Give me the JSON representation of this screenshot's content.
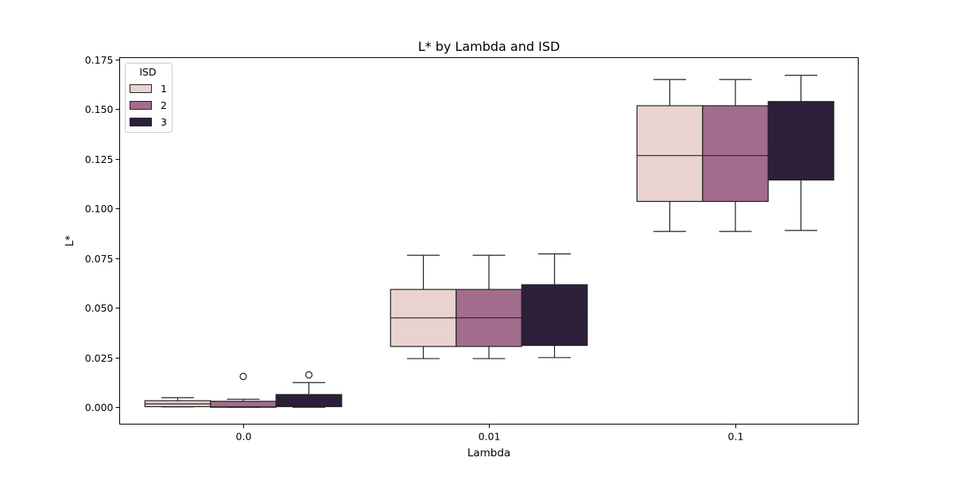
{
  "chart_data": {
    "type": "boxplot",
    "title": "L* by Lambda and ISD",
    "xlabel": "Lambda",
    "ylabel": "L*",
    "ylim": [
      -0.0085,
      0.176
    ],
    "yticks": [
      "0.000",
      "0.025",
      "0.050",
      "0.075",
      "0.100",
      "0.125",
      "0.150",
      "0.175"
    ],
    "ytick_values": [
      0.0,
      0.025,
      0.05,
      0.075,
      0.1,
      0.125,
      0.15,
      0.175
    ],
    "categories": [
      "0.0",
      "0.01",
      "0.1"
    ],
    "legend": {
      "title": "ISD",
      "position": "top-left"
    },
    "grid": false,
    "series": [
      {
        "name": "1",
        "color": "#e8d3d0",
        "boxes": [
          {
            "whisker_low": 0.0002,
            "q1": 0.0003,
            "median": 0.0017,
            "q3": 0.0033,
            "whisker_high": 0.0048,
            "outliers": []
          },
          {
            "whisker_low": 0.0245,
            "q1": 0.0306,
            "median": 0.045,
            "q3": 0.0593,
            "whisker_high": 0.0765,
            "outliers": []
          },
          {
            "whisker_low": 0.0885,
            "q1": 0.1036,
            "median": 0.1267,
            "q3": 0.1518,
            "whisker_high": 0.165,
            "outliers": []
          }
        ]
      },
      {
        "name": "2",
        "color": "#a26d8c",
        "boxes": [
          {
            "whisker_low": 0.0,
            "q1": 0.0,
            "median": 0.0002,
            "q3": 0.003,
            "whisker_high": 0.004,
            "outliers": [
              0.0155
            ]
          },
          {
            "whisker_low": 0.0245,
            "q1": 0.0306,
            "median": 0.045,
            "q3": 0.0593,
            "whisker_high": 0.0765,
            "outliers": []
          },
          {
            "whisker_low": 0.0885,
            "q1": 0.1036,
            "median": 0.1267,
            "q3": 0.1518,
            "whisker_high": 0.165,
            "outliers": []
          }
        ]
      },
      {
        "name": "3",
        "color": "#2d1f3a",
        "boxes": [
          {
            "whisker_low": 0.0,
            "q1": 0.0003,
            "median": 0.0008,
            "q3": 0.0064,
            "whisker_high": 0.0124,
            "outliers": [
              0.0163
            ]
          },
          {
            "whisker_low": 0.025,
            "q1": 0.0311,
            "median": 0.0458,
            "q3": 0.0617,
            "whisker_high": 0.0772,
            "outliers": []
          },
          {
            "whisker_low": 0.089,
            "q1": 0.1144,
            "median": 0.1318,
            "q3": 0.1539,
            "whisker_high": 0.1671,
            "outliers": []
          }
        ]
      }
    ]
  }
}
